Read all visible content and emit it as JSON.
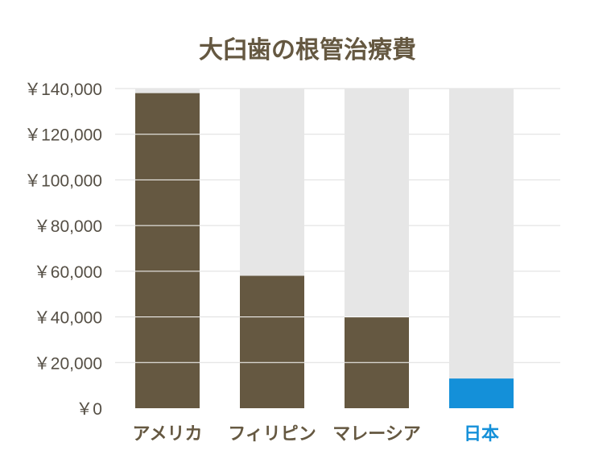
{
  "chart_data": {
    "type": "bar",
    "title": "大臼歯の根管治療費",
    "xlabel": "",
    "ylabel": "",
    "categories": [
      "アメリカ",
      "フィリピン",
      "マレーシア",
      "日本"
    ],
    "values": [
      138000,
      58000,
      40000,
      13000
    ],
    "ylim": [
      0,
      140000
    ],
    "yticks": [
      {
        "value": 0,
        "label": "￥0"
      },
      {
        "value": 20000,
        "label": "￥20,000"
      },
      {
        "value": 40000,
        "label": "￥40,000"
      },
      {
        "value": 60000,
        "label": "￥60,000"
      },
      {
        "value": 80000,
        "label": "￥80,000"
      },
      {
        "value": 100000,
        "label": "￥100,000"
      },
      {
        "value": 120000,
        "label": "￥120,000"
      },
      {
        "value": 140000,
        "label": "￥140,000"
      }
    ],
    "grid": true,
    "legend": "none",
    "colors": {
      "bar": "#655841",
      "highlight_bar": "#1490d9",
      "background_bar": "#e6e6e6",
      "category_label": "#655841",
      "highlight_label": "#1490d9"
    },
    "highlight_category": "日本"
  }
}
